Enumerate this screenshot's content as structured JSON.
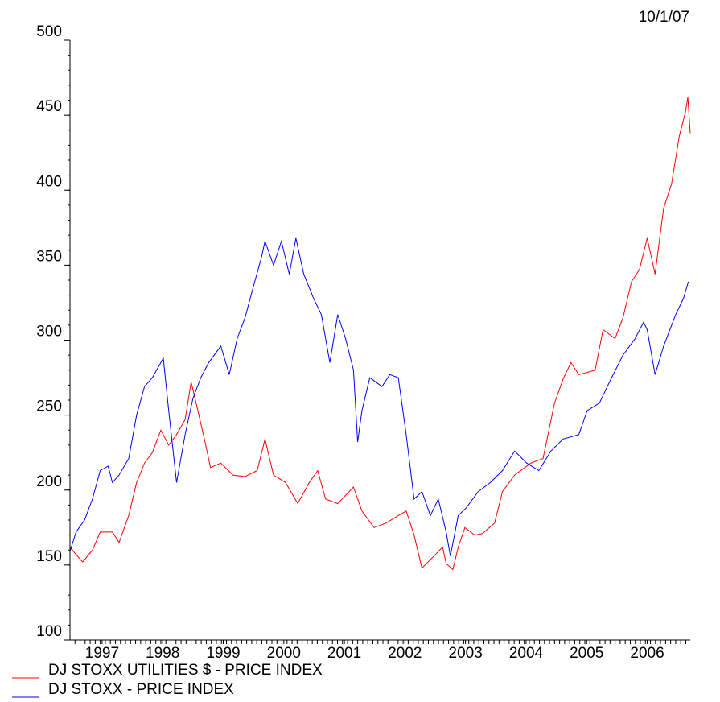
{
  "chart_data": {
    "type": "line",
    "date_label": "10/1/07",
    "xlim": [
      1996.97,
      2007.21
    ],
    "ylim": [
      100,
      500
    ],
    "yticks": [
      100,
      150,
      200,
      250,
      300,
      350,
      400,
      450,
      500
    ],
    "xticks": [
      {
        "value": 1997.5,
        "label": "1997"
      },
      {
        "value": 1998.5,
        "label": "1998"
      },
      {
        "value": 1999.5,
        "label": "1999"
      },
      {
        "value": 2000.5,
        "label": "2000"
      },
      {
        "value": 2001.5,
        "label": "2001"
      },
      {
        "value": 2002.5,
        "label": "2002"
      },
      {
        "value": 2003.5,
        "label": "2003"
      },
      {
        "value": 2004.5,
        "label": "2004"
      },
      {
        "value": 2005.5,
        "label": "2005"
      },
      {
        "value": 2006.5,
        "label": "2006"
      }
    ],
    "series": [
      {
        "name": "DJ STOXX UTILITIES $ - PRICE INDEX",
        "color": "#ff0000",
        "x": [
          1996.97,
          1997.07,
          1997.18,
          1997.34,
          1997.47,
          1997.67,
          1997.78,
          1997.94,
          1998.07,
          1998.2,
          1998.33,
          1998.47,
          1998.6,
          1998.73,
          1998.87,
          1998.97,
          1999.07,
          1999.2,
          1999.29,
          1999.46,
          1999.66,
          1999.86,
          2000.06,
          2000.19,
          2000.33,
          2000.53,
          2000.73,
          2000.92,
          2001.06,
          2001.19,
          2001.39,
          2001.65,
          2001.79,
          2001.99,
          2002.19,
          2002.39,
          2002.52,
          2002.65,
          2002.78,
          2002.98,
          2003.12,
          2003.18,
          2003.29,
          2003.38,
          2003.49,
          2003.65,
          2003.78,
          2003.98,
          2004.11,
          2004.31,
          2004.58,
          2004.78,
          2004.97,
          2005.11,
          2005.24,
          2005.37,
          2005.64,
          2005.77,
          2005.97,
          2006.1,
          2006.24,
          2006.37,
          2006.5,
          2006.63,
          2006.77,
          2006.9,
          2007.03,
          2007.13,
          2007.17,
          2007.21
        ],
        "values": [
          162,
          157,
          152,
          160,
          172,
          172,
          165,
          183,
          205,
          218,
          225,
          240,
          230,
          237,
          247,
          272,
          255,
          232,
          215,
          218,
          210,
          209,
          213,
          234,
          210,
          205,
          191,
          205,
          213,
          194,
          191,
          202,
          186,
          175,
          178,
          183,
          186,
          170,
          148,
          156,
          162,
          151,
          147,
          162,
          175,
          170,
          171,
          178,
          199,
          210,
          218,
          221,
          258,
          274,
          285,
          277,
          280,
          307,
          301,
          315,
          339,
          347,
          368,
          344,
          388,
          404,
          436,
          452,
          462,
          438
        ]
      },
      {
        "name": "DJ STOXX - PRICE INDEX",
        "color": "#0000ff",
        "x": [
          1996.97,
          1997.07,
          1997.21,
          1997.34,
          1997.47,
          1997.6,
          1997.67,
          1997.78,
          1997.94,
          1998.07,
          1998.2,
          1998.33,
          1998.51,
          1998.6,
          1998.73,
          1998.87,
          1999.0,
          1999.13,
          1999.26,
          1999.46,
          1999.6,
          1999.73,
          1999.86,
          2000.0,
          2000.13,
          2000.19,
          2000.33,
          2000.46,
          2000.59,
          2000.7,
          2000.83,
          2000.99,
          2001.12,
          2001.26,
          2001.39,
          2001.52,
          2001.65,
          2001.72,
          2001.79,
          2001.92,
          2002.12,
          2002.25,
          2002.39,
          2002.52,
          2002.65,
          2002.78,
          2002.92,
          2003.05,
          2003.18,
          2003.25,
          2003.38,
          2003.51,
          2003.71,
          2003.91,
          2004.11,
          2004.31,
          2004.51,
          2004.71,
          2004.91,
          2005.11,
          2005.37,
          2005.51,
          2005.71,
          2005.9,
          2006.1,
          2006.3,
          2006.44,
          2006.5,
          2006.63,
          2006.77,
          2006.97,
          2007.1,
          2007.18
        ],
        "values": [
          159,
          172,
          180,
          194,
          213,
          216,
          205,
          210,
          221,
          250,
          269,
          275,
          288,
          253,
          205,
          237,
          261,
          275,
          285,
          296,
          277,
          301,
          315,
          336,
          355,
          366,
          350,
          366,
          344,
          368,
          344,
          328,
          317,
          285,
          317,
          301,
          280,
          232,
          253,
          275,
          269,
          277,
          275,
          237,
          194,
          199,
          183,
          194,
          172,
          156,
          183,
          188,
          199,
          205,
          213,
          226,
          218,
          213,
          226,
          234,
          237,
          253,
          258,
          274,
          290,
          301,
          312,
          307,
          277,
          296,
          317,
          328,
          339
        ]
      }
    ]
  }
}
